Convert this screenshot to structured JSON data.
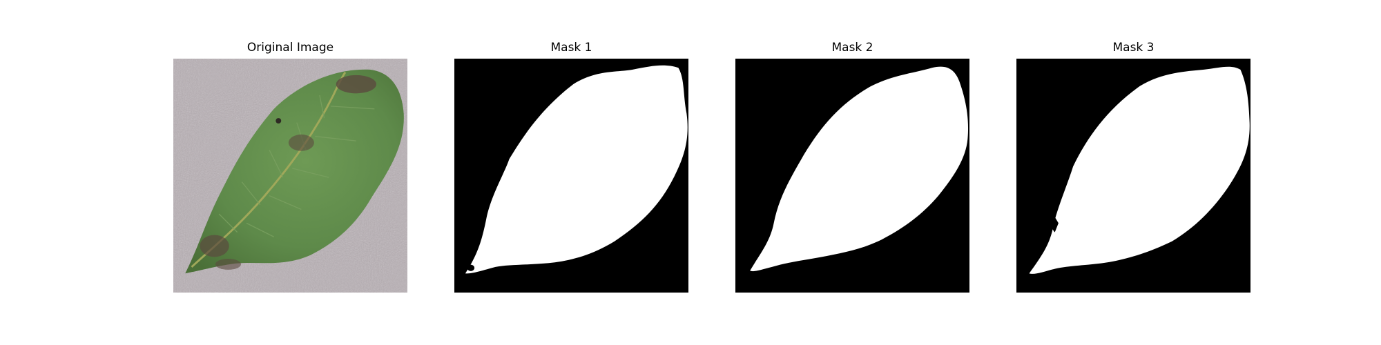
{
  "panels": [
    {
      "title": "Original Image",
      "kind": "photo"
    },
    {
      "title": "Mask 1",
      "kind": "mask"
    },
    {
      "title": "Mask 2",
      "kind": "mask"
    },
    {
      "title": "Mask 3",
      "kind": "mask"
    }
  ],
  "colors": {
    "background": "#ffffff",
    "mask_background": "#000000",
    "mask_foreground": "#ffffff",
    "photo_surface": "#b9b2b6",
    "leaf_green": "#5e8a4a",
    "leaf_vein": "#a0a85a",
    "leaf_blight": "#5b4a3f"
  }
}
